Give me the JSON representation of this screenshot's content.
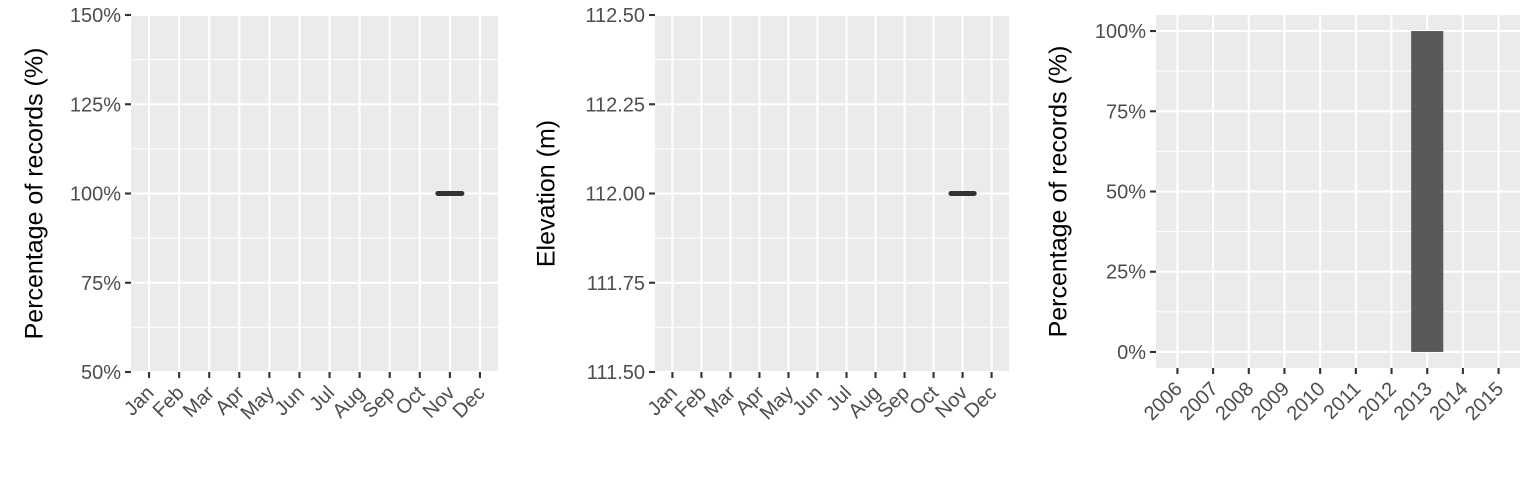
{
  "chart_data": [
    {
      "type": "line",
      "title": "",
      "xlabel": "",
      "ylabel": "Percentage of records (%)",
      "categories": [
        "Jan",
        "Feb",
        "Mar",
        "Apr",
        "May",
        "Jun",
        "Jul",
        "Aug",
        "Sep",
        "Oct",
        "Nov",
        "Dec"
      ],
      "ylim": [
        50,
        150
      ],
      "yticks": [
        50,
        75,
        100,
        125,
        150
      ],
      "ytick_labels": [
        "50%",
        "75%",
        "100%",
        "125%",
        "150%"
      ],
      "grid": true,
      "series": [
        {
          "values": [
            null,
            null,
            null,
            null,
            null,
            null,
            null,
            null,
            null,
            null,
            100,
            null
          ]
        }
      ],
      "color": "#333333"
    },
    {
      "type": "line",
      "title": "",
      "xlabel": "",
      "ylabel": "Elevation (m)",
      "categories": [
        "Jan",
        "Feb",
        "Mar",
        "Apr",
        "May",
        "Jun",
        "Jul",
        "Aug",
        "Sep",
        "Oct",
        "Nov",
        "Dec"
      ],
      "ylim": [
        111.5,
        112.5
      ],
      "yticks": [
        111.5,
        111.75,
        112.0,
        112.25,
        112.5
      ],
      "ytick_labels": [
        "111.50",
        "111.75",
        "112.00",
        "112.25",
        "112.50"
      ],
      "grid": true,
      "series": [
        {
          "values": [
            null,
            null,
            null,
            null,
            null,
            null,
            null,
            null,
            null,
            null,
            112.0,
            null
          ]
        }
      ],
      "color": "#333333"
    },
    {
      "type": "bar",
      "title": "",
      "xlabel": "",
      "ylabel": "Percentage of records (%)",
      "categories": [
        "2006",
        "2007",
        "2008",
        "2009",
        "2010",
        "2011",
        "2012",
        "2013",
        "2014",
        "2015"
      ],
      "values": [
        0,
        0,
        0,
        0,
        0,
        0,
        0,
        100,
        0,
        0
      ],
      "ylim": [
        -5,
        105
      ],
      "yticks": [
        0,
        25,
        50,
        75,
        100
      ],
      "ytick_labels": [
        "0%",
        "25%",
        "50%",
        "75%",
        "100%"
      ],
      "grid": true,
      "color": "#595959"
    }
  ]
}
